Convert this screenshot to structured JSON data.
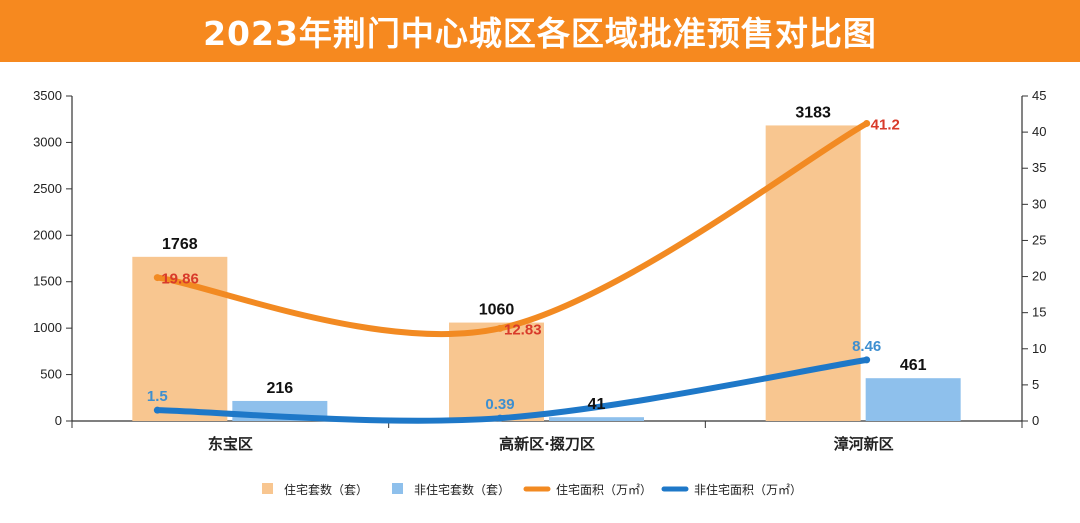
{
  "header": {
    "title": "2023年荆门中心城区各区域批准预售对比图"
  },
  "colors": {
    "banner": "#f6891f",
    "residential_units": "#f8c690",
    "nonres_units": "#8ec0ec",
    "residential_area": "#f28a22",
    "nonres_area": "#1e78c8",
    "label_red": "#d83a2a",
    "label_blue": "#3e8fd0"
  },
  "chart_data": {
    "type": "bar",
    "title": "2023年荆门中心城区各区域批准预售对比图",
    "categories": [
      "东宝区",
      "高新区·掇刀区",
      "漳河新区"
    ],
    "y_left": {
      "min": 0,
      "max": 3500,
      "step": 500,
      "ticks": [
        "0",
        "500",
        "1000",
        "1500",
        "2000",
        "2500",
        "3000",
        "3500"
      ]
    },
    "y_right": {
      "min": 0,
      "max": 45,
      "step": 5,
      "ticks": [
        "0",
        "5",
        "10",
        "15",
        "20",
        "25",
        "30",
        "35",
        "40",
        "45"
      ]
    },
    "grid": false,
    "legend_position": "bottom",
    "series": [
      {
        "name": "住宅套数（套）",
        "type": "bar",
        "axis": "left",
        "values": [
          1768,
          1060,
          3183
        ],
        "labels": [
          "1768",
          "1060",
          "3183"
        ]
      },
      {
        "name": "非住宅套数（套）",
        "type": "bar",
        "axis": "left",
        "values": [
          216,
          41,
          461
        ],
        "labels": [
          "216",
          "41",
          "461"
        ]
      },
      {
        "name": "住宅面积（万㎡）",
        "type": "line",
        "axis": "right",
        "values": [
          19.86,
          12.83,
          41.2
        ],
        "labels": [
          "19.86",
          "12.83",
          "41.2"
        ]
      },
      {
        "name": "非住宅面积（万㎡）",
        "type": "line",
        "axis": "right",
        "values": [
          1.5,
          0.39,
          8.46
        ],
        "labels": [
          "1.5",
          "0.39",
          "8.46"
        ]
      }
    ]
  }
}
